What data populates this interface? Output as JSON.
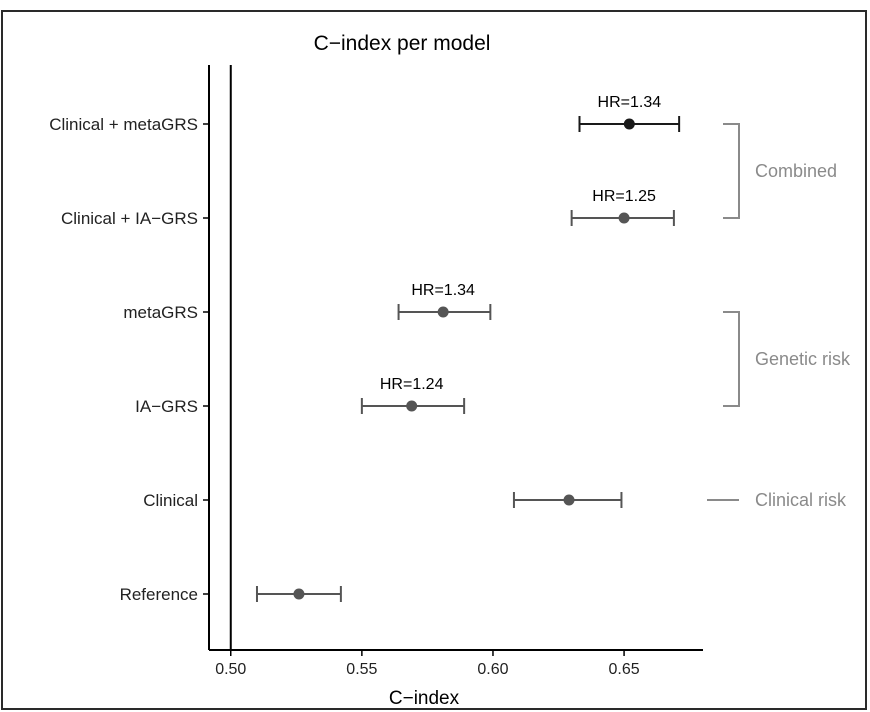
{
  "chart_data": {
    "type": "forest",
    "title": "C−index per model",
    "xlabel": "C−index",
    "ylabel": "",
    "xlim": [
      0.4917,
      0.6801
    ],
    "xticks": [
      "0.50",
      "0.55",
      "0.60",
      "0.65"
    ],
    "xtick_values": [
      0.5,
      0.55,
      0.6,
      0.65
    ],
    "reference_line": 0.5,
    "models": [
      {
        "label": "Clinical + metaGRS",
        "estimate": 0.652,
        "lower": 0.633,
        "upper": 0.671,
        "hr_label": "HR=1.34",
        "color": "#1a1a1a"
      },
      {
        "label": "Clinical + IA−GRS",
        "estimate": 0.65,
        "lower": 0.63,
        "upper": 0.669,
        "hr_label": "HR=1.25",
        "color": "#555555"
      },
      {
        "label": "metaGRS",
        "estimate": 0.581,
        "lower": 0.564,
        "upper": 0.599,
        "hr_label": "HR=1.34",
        "color": "#555555"
      },
      {
        "label": "IA−GRS",
        "estimate": 0.569,
        "lower": 0.55,
        "upper": 0.589,
        "hr_label": "HR=1.24",
        "color": "#555555"
      },
      {
        "label": "Clinical",
        "estimate": 0.629,
        "lower": 0.608,
        "upper": 0.649,
        "hr_label": "",
        "color": "#555555"
      },
      {
        "label": "Reference",
        "estimate": 0.526,
        "lower": 0.51,
        "upper": 0.542,
        "hr_label": "",
        "color": "#555555"
      }
    ],
    "groups": [
      {
        "label": "Combined",
        "from": 0,
        "to": 1,
        "kind": "bracket"
      },
      {
        "label": "Genetic risk",
        "from": 2,
        "to": 3,
        "kind": "bracket"
      },
      {
        "label": "Clinical risk",
        "from": 4,
        "to": 4,
        "kind": "dash"
      }
    ],
    "colors": {
      "axis": "#000000",
      "bracket": "#8a8a8a"
    }
  }
}
